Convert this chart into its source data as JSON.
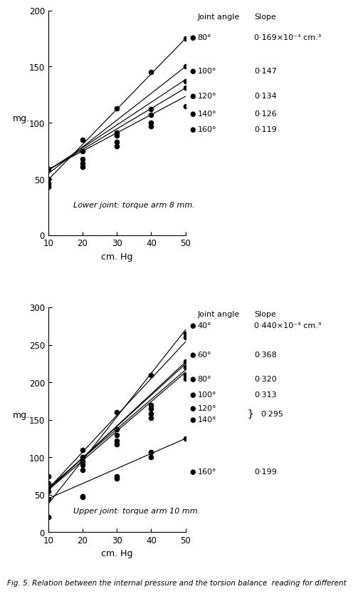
{
  "upper_panel": {
    "title": "Lower joint: torque arm 8 mm.",
    "xlabel": "cm. Hg",
    "ylabel": "mg.",
    "xlim": [
      10,
      50
    ],
    "ylim": [
      0,
      200
    ],
    "xticks": [
      10,
      20,
      30,
      40,
      50
    ],
    "yticks": [
      0,
      50,
      100,
      150,
      200
    ],
    "legend_header_angle": "Joint angle",
    "legend_header_slope": "Slope",
    "series": [
      {
        "label": "80°",
        "slope_text": "0·169×10⁻³ cm.³",
        "intercept": 18.0,
        "slope": 3.14,
        "x_points": [
          10,
          20,
          30,
          40,
          50
        ],
        "y_points": [
          50,
          85,
          113,
          145,
          175
        ]
      },
      {
        "label": "100°",
        "slope_text": "0·147",
        "intercept": 31.0,
        "slope": 2.38,
        "x_points": [
          10,
          20,
          30,
          40,
          50
        ],
        "y_points": [
          46,
          68,
          89,
          112,
          150
        ]
      },
      {
        "label": "120°",
        "slope_text": "0·134",
        "intercept": 37.5,
        "slope": 2.02,
        "x_points": [
          10,
          20,
          30,
          40,
          50
        ],
        "y_points": [
          44,
          64,
          83,
          100,
          137
        ]
      },
      {
        "label": "140°",
        "slope_text": "0·126",
        "intercept": 40.0,
        "slope": 1.82,
        "x_points": [
          10,
          20,
          30,
          40,
          50
        ],
        "y_points": [
          43,
          61,
          79,
          97,
          131
        ]
      },
      {
        "label": "160°",
        "slope_text": "0·119",
        "intercept": 42.5,
        "slope": 1.62,
        "x_points": [
          10,
          20,
          30,
          40,
          50
        ],
        "y_points": [
          59,
          75,
          91,
          107,
          115
        ]
      }
    ]
  },
  "lower_panel": {
    "title": "Upper joint: torque arm 10 mm.",
    "xlabel": "cm. Hg",
    "ylabel": "mg.",
    "xlim": [
      10,
      50
    ],
    "ylim": [
      0,
      300
    ],
    "xticks": [
      10,
      20,
      30,
      40,
      50
    ],
    "yticks": [
      0,
      50,
      100,
      150,
      200,
      250,
      300
    ],
    "legend_header_angle": "Joint angle",
    "legend_header_slope": "Slope",
    "series": [
      {
        "label": "40°",
        "slope_text": "0·440×10⁻³ cm.³",
        "intercept": -20.0,
        "slope": 5.8,
        "x_points": [
          10,
          20,
          30,
          40,
          50
        ],
        "y_points": [
          20,
          48,
          75,
          100,
          265
        ]
      },
      {
        "label": "60°",
        "slope_text": "0·368",
        "intercept": 9.0,
        "slope": 4.9,
        "x_points": [
          10,
          20,
          30,
          40,
          50
        ],
        "y_points": [
          75,
          110,
          160,
          210,
          260
        ]
      },
      {
        "label": "80°",
        "slope_text": "0·320",
        "intercept": 14.0,
        "slope": 4.26,
        "x_points": [
          10,
          20,
          30,
          40,
          50
        ],
        "y_points": [
          65,
          100,
          137,
          170,
          228
        ]
      },
      {
        "label": "100°",
        "slope_text": "0·313",
        "intercept": 16.0,
        "slope": 4.17,
        "x_points": [
          10,
          20,
          30,
          40,
          50
        ],
        "y_points": [
          62,
          95,
          130,
          165,
          220
        ]
      },
      {
        "label": "120°",
        "slope_text": "0·295",
        "intercept": 20.0,
        "slope": 3.93,
        "x_points": [
          10,
          20,
          30,
          40,
          50
        ],
        "y_points": [
          60,
          90,
          122,
          158,
          210
        ]
      },
      {
        "label": "140°",
        "slope_text": "0·295",
        "intercept": 17.0,
        "slope": 3.93,
        "x_points": [
          10,
          20,
          30,
          40,
          50
        ],
        "y_points": [
          55,
          83,
          117,
          153,
          205
        ]
      },
      {
        "label": "160°",
        "slope_text": "0·199",
        "intercept": 25.0,
        "slope": 2.0,
        "x_points": [
          10,
          20,
          30,
          40,
          50
        ],
        "y_points": [
          44,
          47,
          72,
          107,
          125
        ]
      }
    ]
  },
  "caption": "Fig. 5. Relation between the internal pressure and the torsion balance  reading for different"
}
